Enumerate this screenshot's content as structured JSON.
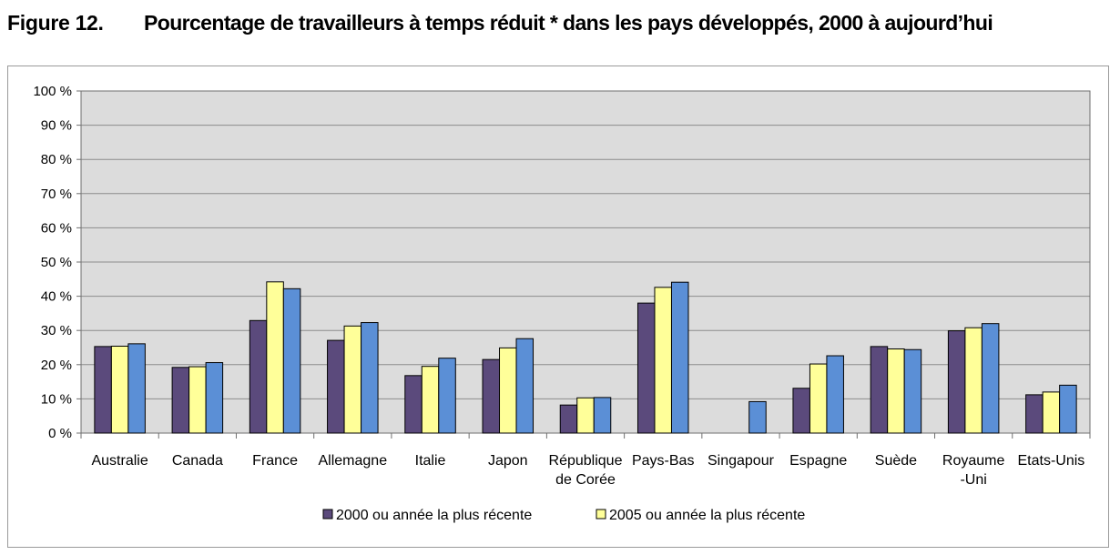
{
  "figure": {
    "number": "Figure 12.",
    "title": "Pourcentage de travailleurs à temps réduit * dans les pays développés, 2000 à aujourd’hui"
  },
  "chart_data": {
    "type": "bar",
    "categories": [
      [
        "Australie"
      ],
      [
        "Canada"
      ],
      [
        "France"
      ],
      [
        "Allemagne"
      ],
      [
        "Italie"
      ],
      [
        "Japon"
      ],
      [
        "République",
        "de Corée"
      ],
      [
        "Pays-Bas"
      ],
      [
        "Singapour"
      ],
      [
        "Espagne"
      ],
      [
        "Suède"
      ],
      [
        "Royaume",
        "-Uni"
      ],
      [
        "Etats-Unis"
      ]
    ],
    "series": [
      {
        "name": "2000 ou année la plus récente",
        "color": "#5b4a7c",
        "values": [
          25.3,
          19.2,
          32.9,
          27.1,
          16.8,
          21.5,
          8.2,
          38.0,
          null,
          13.1,
          25.3,
          29.9,
          11.2
        ]
      },
      {
        "name": "2005 ou année la plus récente",
        "color": "#ffff99",
        "values": [
          25.4,
          19.4,
          44.2,
          31.3,
          19.5,
          24.9,
          10.3,
          42.6,
          null,
          20.2,
          24.6,
          30.8,
          12.0
        ]
      },
      {
        "name": "",
        "color": "#5b8fd6",
        "values": [
          26.1,
          20.6,
          42.2,
          32.3,
          21.9,
          27.6,
          10.4,
          44.1,
          9.2,
          22.6,
          24.4,
          32.0,
          14.0
        ]
      }
    ],
    "y_ticks": [
      "0 %",
      "10 %",
      "20 %",
      "30 %",
      "40 %",
      "50 %",
      "60 %",
      "70 %",
      "80 %",
      "90 %",
      "100 %"
    ],
    "ylim": [
      0,
      100
    ],
    "grid": true,
    "plot_background": "#dcdcdc",
    "legend_position": "bottom"
  }
}
